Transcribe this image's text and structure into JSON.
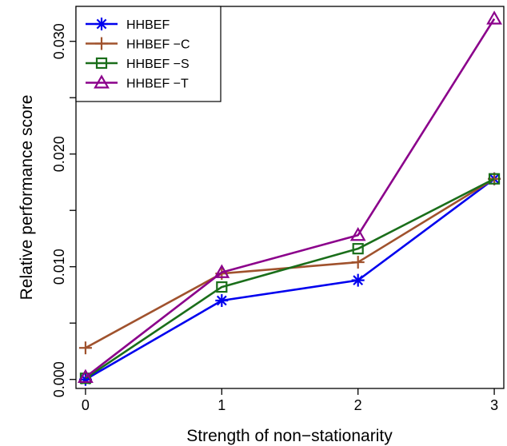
{
  "chart_data": {
    "type": "line",
    "xlabel": "Strength of non−stationarity",
    "ylabel": "Relative performance score",
    "x": [
      0,
      1,
      2,
      3
    ],
    "xticks": [
      "0",
      "1",
      "2",
      "3"
    ],
    "xlim": [
      -0.07,
      3.07
    ],
    "ylim": [
      -0.0008,
      0.0331
    ],
    "yticks_labeled": [
      "0.000",
      "0.010",
      "0.020",
      "0.030"
    ],
    "ytick_values_labeled": [
      0.0,
      0.01,
      0.02,
      0.03
    ],
    "ytick_values_minor": [
      0.005,
      0.015,
      0.025
    ],
    "legend_position": "top-left",
    "series": [
      {
        "name": "HHBEF",
        "color": "#0000ee",
        "marker": "asterisk",
        "values": [
          0.0,
          0.007,
          0.0088,
          0.0178
        ]
      },
      {
        "name": "HHBEF −C",
        "color": "#a0522d",
        "marker": "plus",
        "values": [
          0.0028,
          0.0094,
          0.0104,
          0.0178
        ]
      },
      {
        "name": "HHBEF −S",
        "color": "#1a6e1a",
        "marker": "square",
        "values": [
          0.0001,
          0.0082,
          0.0116,
          0.0178
        ]
      },
      {
        "name": "HHBEF −T",
        "color": "#8b008b",
        "marker": "triangle",
        "values": [
          0.0002,
          0.0095,
          0.0128,
          0.032
        ]
      }
    ]
  }
}
